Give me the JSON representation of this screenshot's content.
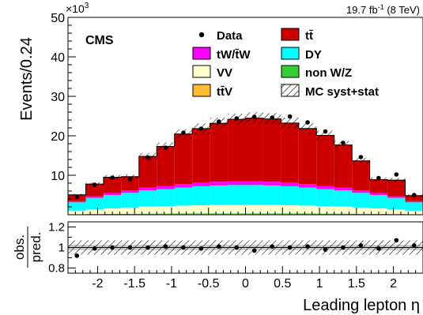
{
  "colors": {
    "ttbar": "#cc0000",
    "tw": "#ff00ff",
    "dy": "#00ffff",
    "vv": "#ffffcc",
    "nonwz": "#33cc33",
    "ttv": "#ffbb33",
    "ratio_band": "#c8c8c8"
  },
  "text": {
    "experiment": "CMS",
    "lumi": "19.7 fb",
    "lumi_sup": "-1",
    "lumi_suffix": " (8 TeV)",
    "exponent_base": "×10",
    "exponent_power": "3",
    "ylabel": "Events/0.24",
    "xlabel": "Leading lepton η",
    "ratio_num": "obs.",
    "ratio_den": "pred."
  },
  "legend": [
    {
      "label": "Data",
      "style": "marker"
    },
    {
      "label": "tt̄",
      "style": "fill",
      "color": "#cc0000"
    },
    {
      "label": "tW/t̄W",
      "style": "fill",
      "color": "#ff00ff"
    },
    {
      "label": "DY",
      "style": "fill",
      "color": "#00ffff"
    },
    {
      "label": "VV",
      "style": "fill",
      "color": "#ffffcc"
    },
    {
      "label": "non W/Z",
      "style": "fill",
      "color": "#33cc33"
    },
    {
      "label": "tt̄V",
      "style": "fill",
      "color": "#ffbb33"
    },
    {
      "label": "MC syst+stat",
      "style": "hatch"
    }
  ],
  "chart_data": [
    {
      "type": "bar",
      "stacked": true,
      "x_edges": [
        -2.4,
        -2.16,
        -1.92,
        -1.68,
        -1.44,
        -1.2,
        -0.96,
        -0.72,
        -0.48,
        -0.24,
        0.0,
        0.24,
        0.48,
        0.72,
        0.96,
        1.2,
        1.44,
        1.68,
        1.92,
        2.16,
        2.4
      ],
      "xlim": [
        -2.4,
        2.4
      ],
      "ylim": [
        0,
        50000
      ],
      "y_ticks": [
        10,
        20,
        30,
        40,
        50
      ],
      "x_ticks": [
        -2,
        -1.5,
        -1,
        -0.5,
        0,
        0.5,
        1,
        1.5,
        2
      ],
      "series": [
        {
          "name": "tt̄V",
          "values": [
            60,
            80,
            90,
            100,
            110,
            120,
            125,
            130,
            135,
            135,
            135,
            135,
            130,
            125,
            120,
            110,
            100,
            90,
            80,
            60
          ]
        },
        {
          "name": "non W/Z",
          "values": [
            80,
            100,
            120,
            140,
            160,
            170,
            180,
            190,
            195,
            200,
            200,
            195,
            190,
            180,
            170,
            160,
            140,
            120,
            100,
            80
          ]
        },
        {
          "name": "VV",
          "values": [
            900,
            1200,
            1400,
            1600,
            1800,
            1900,
            2000,
            2100,
            2200,
            2200,
            2200,
            2200,
            2100,
            2000,
            1900,
            1800,
            1600,
            1400,
            1200,
            900
          ]
        },
        {
          "name": "DY",
          "values": [
            2100,
            2900,
            3400,
            3700,
            4100,
            4300,
            4600,
            4800,
            4900,
            5000,
            5000,
            4900,
            4800,
            4600,
            4300,
            4100,
            3700,
            3400,
            2900,
            2100
          ]
        },
        {
          "name": "tW/t̄W",
          "values": [
            300,
            400,
            500,
            600,
            700,
            800,
            850,
            900,
            950,
            950,
            950,
            950,
            900,
            850,
            800,
            700,
            600,
            500,
            400,
            300
          ]
        },
        {
          "name": "tt̄",
          "values": [
            1600,
            3100,
            4000,
            3500,
            7900,
            10000,
            12700,
            13700,
            14800,
            15700,
            16000,
            15900,
            15100,
            14100,
            12800,
            10800,
            7500,
            3400,
            4100,
            1400
          ]
        },
        {
          "name": "Data",
          "values": [
            4500,
            7600,
            9400,
            9000,
            14500,
            17000,
            20800,
            21800,
            23600,
            24400,
            24800,
            24600,
            24900,
            23400,
            21100,
            18200,
            14600,
            9300,
            10200,
            5000
          ]
        }
      ],
      "ylabel": "Events/0.24",
      "xlabel": "Leading lepton η",
      "exponent": "×10³",
      "legend_position": "top",
      "uncertainty_band": "MC syst+stat"
    },
    {
      "type": "scatter",
      "name": "obs./pred.",
      "x": [
        -2.28,
        -2.04,
        -1.8,
        -1.56,
        -1.32,
        -1.08,
        -0.84,
        -0.6,
        -0.36,
        -0.12,
        0.12,
        0.36,
        0.6,
        0.84,
        1.08,
        1.32,
        1.56,
        1.8,
        2.04,
        2.28
      ],
      "y": [
        0.92,
        0.99,
        1.0,
        1.0,
        1.0,
        1.01,
        1.0,
        0.99,
        1.01,
        1.0,
        0.97,
        1.01,
        1.0,
        1.01,
        0.98,
        1.0,
        1.02,
        0.99,
        1.07,
        1.02
      ],
      "ylim": [
        0.75,
        1.25
      ],
      "y_ticks": [
        0.8,
        1,
        1.2
      ],
      "ylabel": "obs./pred."
    }
  ]
}
